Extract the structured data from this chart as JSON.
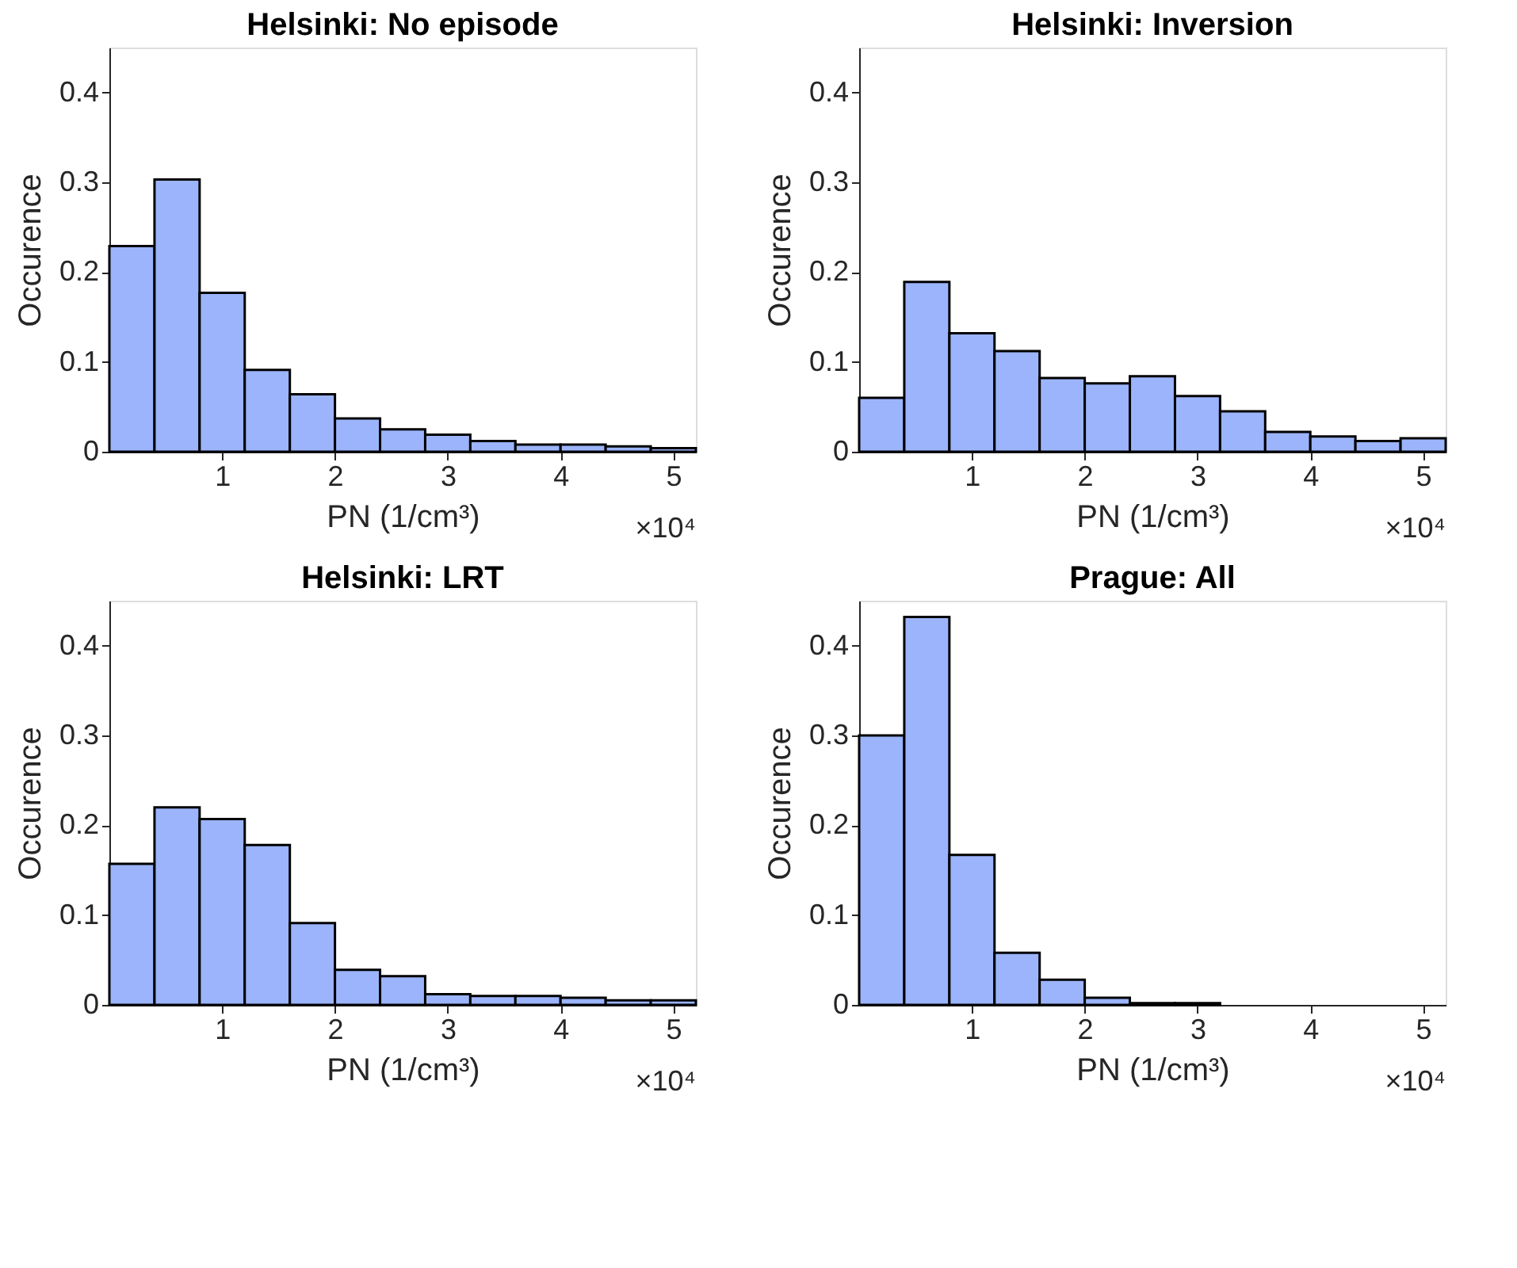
{
  "chart_data": [
    {
      "type": "histogram",
      "title": "Helsinki: No episode",
      "xlabel": "PN (1/cm³)",
      "ylabel": "Occurence",
      "color": "#9bb4fb",
      "annotations": [
        "×10⁴"
      ],
      "bins": [
        0,
        0.4,
        0.8,
        1.2,
        1.6,
        2.0,
        2.4,
        2.8,
        3.2,
        3.6,
        4.0,
        4.4,
        4.8,
        5.2
      ],
      "values": [
        0.229,
        0.303,
        0.177,
        0.091,
        0.064,
        0.037,
        0.025,
        0.019,
        0.012,
        0.008,
        0.008,
        0.006,
        0.004
      ],
      "xlim": [
        0,
        5.2
      ],
      "xticks": [
        1,
        2,
        3,
        4,
        5
      ],
      "ylim": [
        0,
        0.45
      ],
      "yticks": [
        0,
        0.1,
        0.2,
        0.3,
        0.4
      ]
    },
    {
      "type": "histogram",
      "title": "Helsinki: Inversion",
      "xlabel": "PN (1/cm³)",
      "ylabel": "Occurence",
      "color": "#9bb4fb",
      "annotations": [
        "×10⁴"
      ],
      "bins": [
        0,
        0.4,
        0.8,
        1.2,
        1.6,
        2.0,
        2.4,
        2.8,
        3.2,
        3.6,
        4.0,
        4.4,
        4.8,
        5.2
      ],
      "values": [
        0.06,
        0.189,
        0.132,
        0.112,
        0.082,
        0.076,
        0.084,
        0.062,
        0.045,
        0.022,
        0.017,
        0.012,
        0.015
      ],
      "xlim": [
        0,
        5.2
      ],
      "xticks": [
        1,
        2,
        3,
        4,
        5
      ],
      "ylim": [
        0,
        0.45
      ],
      "yticks": [
        0,
        0.1,
        0.2,
        0.3,
        0.4
      ]
    },
    {
      "type": "histogram",
      "title": "Helsinki: LRT",
      "xlabel": "PN (1/cm³)",
      "ylabel": "Occurence",
      "color": "#9bb4fb",
      "annotations": [
        "×10⁴"
      ],
      "bins": [
        0,
        0.4,
        0.8,
        1.2,
        1.6,
        2.0,
        2.4,
        2.8,
        3.2,
        3.6,
        4.0,
        4.4,
        4.8,
        5.2
      ],
      "values": [
        0.157,
        0.22,
        0.207,
        0.178,
        0.091,
        0.039,
        0.032,
        0.012,
        0.01,
        0.01,
        0.008,
        0.005,
        0.005
      ],
      "xlim": [
        0,
        5.2
      ],
      "xticks": [
        1,
        2,
        3,
        4,
        5
      ],
      "ylim": [
        0,
        0.45
      ],
      "yticks": [
        0,
        0.1,
        0.2,
        0.3,
        0.4
      ]
    },
    {
      "type": "histogram",
      "title": "Prague: All",
      "xlabel": "PN (1/cm³)",
      "ylabel": "Occurence",
      "color": "#9bb4fb",
      "annotations": [
        "×10⁴"
      ],
      "bins": [
        0,
        0.4,
        0.8,
        1.2,
        1.6,
        2.0,
        2.4,
        2.8,
        3.2,
        3.6,
        4.0,
        4.4,
        4.8,
        5.2
      ],
      "values": [
        0.3,
        0.432,
        0.167,
        0.058,
        0.028,
        0.008,
        0.002,
        0.002,
        0,
        0,
        0,
        0,
        0
      ],
      "xlim": [
        0,
        5.2
      ],
      "xticks": [
        1,
        2,
        3,
        4,
        5
      ],
      "ylim": [
        0,
        0.45
      ],
      "yticks": [
        0,
        0.1,
        0.2,
        0.3,
        0.4
      ]
    }
  ]
}
